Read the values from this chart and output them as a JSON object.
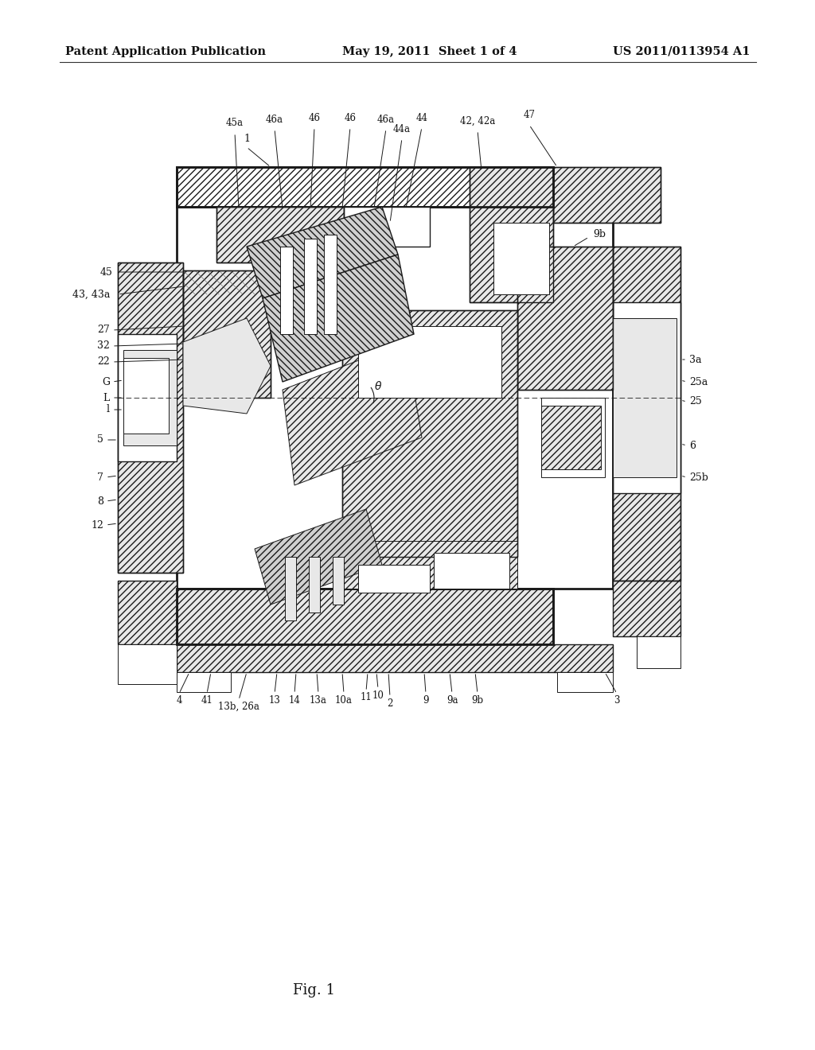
{
  "title_left": "Patent Application Publication",
  "title_center": "May 19, 2011  Sheet 1 of 4",
  "title_right": "US 2011/0113954 A1",
  "fig_label": "Fig. 1",
  "bg_color": "#ffffff",
  "header_fontsize": 10.5,
  "fig_label_fontsize": 13,
  "label_fontsize": 9.0
}
